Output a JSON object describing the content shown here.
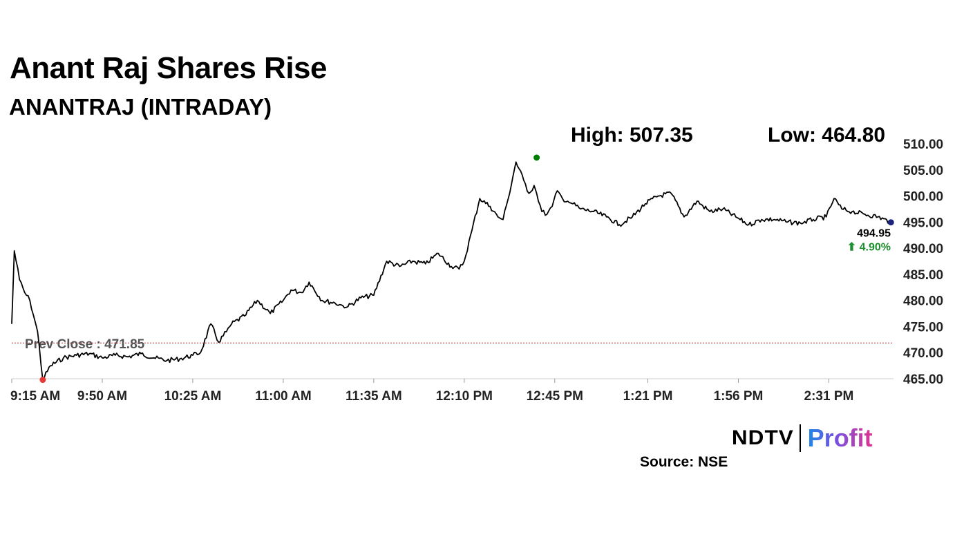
{
  "header": {
    "title": "Anant Raj Shares Rise",
    "subtitle": "ANANTRAJ (INTRADAY)"
  },
  "stats": {
    "high": "High: 507.35",
    "low": "Low: 464.80"
  },
  "footer": {
    "logo_left": "NDTV",
    "logo_right": "Profit",
    "source": "Source: NSE"
  },
  "colors": {
    "line": "#000000",
    "high_marker": "#008000",
    "low_marker": "#e53935",
    "last_marker": "#1a237e",
    "change": "#1e8f2e",
    "prev_close": "#c62828"
  },
  "chart_data": {
    "type": "line",
    "title": "Anant Raj Shares Rise",
    "subtitle": "ANANTRAJ (INTRADAY)",
    "xlabel": "",
    "ylabel": "",
    "ylim": [
      465,
      510
    ],
    "xlim": [
      "9:15 AM",
      "2:56 PM"
    ],
    "y_axis_position": "right",
    "y_ticks": [
      "510.00",
      "505.00",
      "500.00",
      "495.00",
      "490.00",
      "485.00",
      "480.00",
      "475.00",
      "470.00",
      "465.00"
    ],
    "x_ticks": [
      "9:15 AM",
      "9:50 AM",
      "10:25 AM",
      "11:00 AM",
      "11:35 AM",
      "12:10 PM",
      "12:45 PM",
      "1:21 PM",
      "1:56 PM",
      "2:31 PM"
    ],
    "grid": false,
    "prev_close": {
      "label": "Prev Close : 471.85",
      "value": 471.85
    },
    "high": {
      "time": "12:38 PM",
      "value": 507.35
    },
    "low": {
      "time": "9:27 AM",
      "value": 464.8
    },
    "last": {
      "time": "2:55 PM",
      "value": "494.95",
      "change": "⬆ 4.90%"
    },
    "series": [
      {
        "x": [
          "9:15 AM",
          "9:16 AM",
          "9:18 AM",
          "9:20 AM",
          "9:22 AM",
          "9:24 AM",
          "9:25 AM",
          "9:27 AM",
          "9:30 AM",
          "9:35 AM",
          "9:40 AM",
          "9:45 AM",
          "9:50 AM",
          "9:55 AM",
          "10:00 AM",
          "10:05 AM",
          "10:10 AM",
          "10:15 AM",
          "10:20 AM",
          "10:25 AM",
          "10:28 AM",
          "10:32 AM",
          "10:35 AM",
          "10:38 AM",
          "10:40 AM",
          "10:45 AM",
          "10:50 AM",
          "10:55 AM",
          "11:00 AM",
          "11:03 AM",
          "11:07 AM",
          "11:10 AM",
          "11:15 AM",
          "11:20 AM",
          "11:23 AM",
          "11:25 AM",
          "11:30 AM",
          "11:35 AM",
          "11:40 AM",
          "11:45 AM",
          "11:50 AM",
          "11:55 AM",
          "12:00 PM",
          "12:05 PM",
          "12:08 PM",
          "12:10 PM",
          "12:13 PM",
          "12:16 PM",
          "12:20 PM",
          "12:23 PM",
          "12:25 PM",
          "12:27 PM",
          "12:30 PM",
          "12:33 PM",
          "12:35 PM",
          "12:37 PM",
          "12:38 PM",
          "12:40 PM",
          "12:42 PM",
          "12:44 PM",
          "12:46 PM",
          "12:48 PM",
          "12:50 PM",
          "12:52 PM",
          "12:55 PM",
          "1:00 PM",
          "1:05 PM",
          "1:10 PM",
          "1:15 PM",
          "1:20 PM",
          "1:25 PM",
          "1:30 PM",
          "1:35 PM",
          "1:40 PM",
          "1:45 PM",
          "1:50 PM",
          "1:55 PM",
          "2:00 PM",
          "2:05 PM",
          "2:10 PM",
          "2:15 PM",
          "2:20 PM",
          "2:25 PM",
          "2:30 PM",
          "2:33 PM",
          "2:36 PM",
          "2:40 PM",
          "2:45 PM",
          "2:50 PM",
          "2:55 PM"
        ],
        "values": [
          475.5,
          489.5,
          484.0,
          481.5,
          480.0,
          476.0,
          474.0,
          464.8,
          467.5,
          469.0,
          469.5,
          469.8,
          469.0,
          469.5,
          469.2,
          469.8,
          469.0,
          468.5,
          468.8,
          469.5,
          470.0,
          475.5,
          472.0,
          474.0,
          475.5,
          477.0,
          480.0,
          477.5,
          480.0,
          482.0,
          481.5,
          483.5,
          480.0,
          479.5,
          479.0,
          478.8,
          480.5,
          481.0,
          487.5,
          486.5,
          487.5,
          487.0,
          489.0,
          486.5,
          486.0,
          487.5,
          493.5,
          499.5,
          498.0,
          496.0,
          495.5,
          499.5,
          506.5,
          503.0,
          500.5,
          502.0,
          500.5,
          497.0,
          496.5,
          498.0,
          501.0,
          499.5,
          499.0,
          498.5,
          497.5,
          497.0,
          496.0,
          494.5,
          496.0,
          498.5,
          500.0,
          500.5,
          496.0,
          499.0,
          497.0,
          497.5,
          496.0,
          494.5,
          495.5,
          495.5,
          495.0,
          494.8,
          495.5,
          496.0,
          499.5,
          497.5,
          497.0,
          496.5,
          496.0,
          494.95
        ]
      }
    ]
  }
}
